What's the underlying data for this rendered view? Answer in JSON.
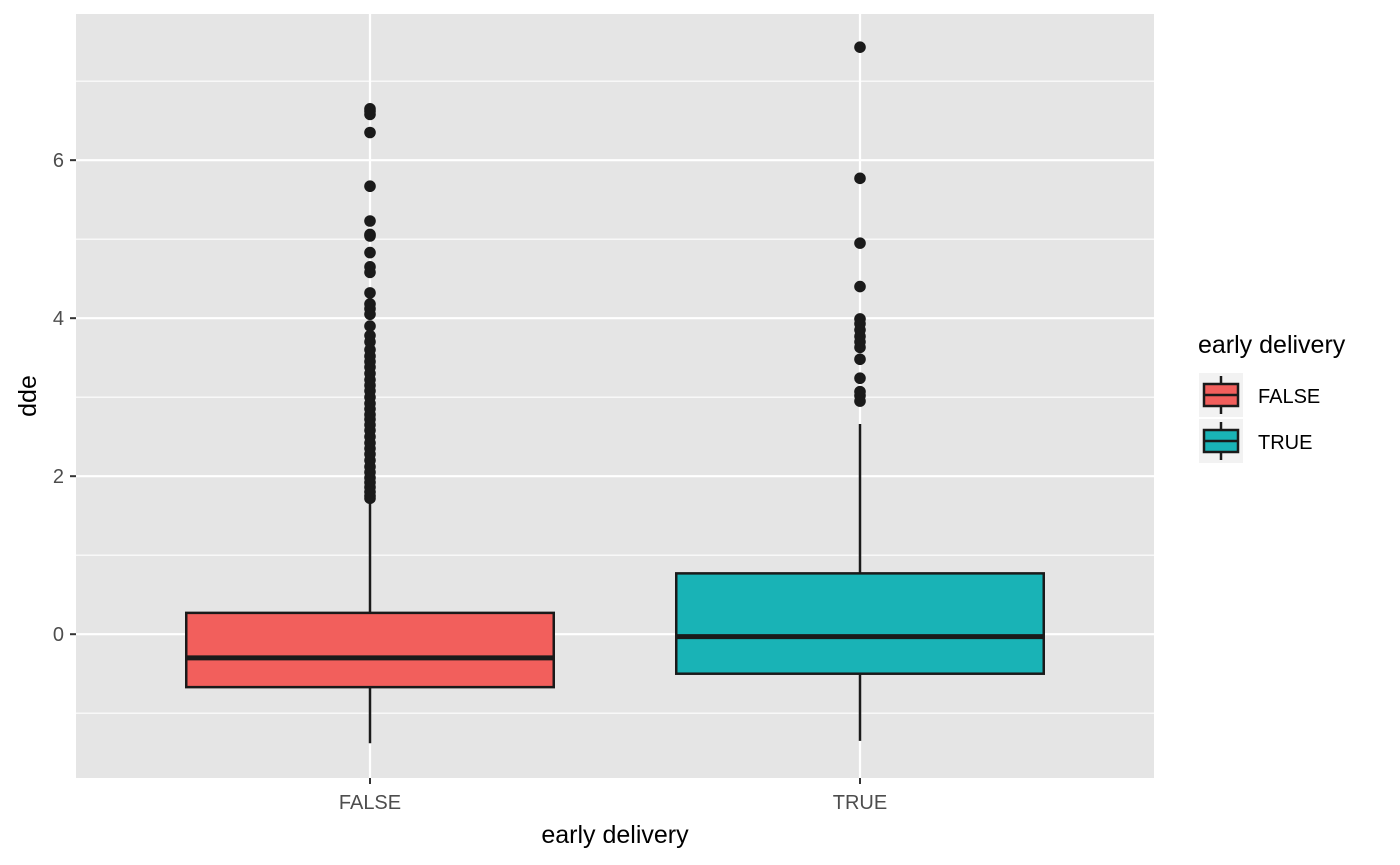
{
  "chart_data": {
    "type": "box",
    "title": "",
    "xlabel": "early delivery",
    "ylabel": "dde",
    "categories": [
      "FALSE",
      "TRUE"
    ],
    "ylim": [
      -1.82,
      7.85
    ],
    "yticks": [
      0,
      2,
      4,
      6
    ],
    "ytick_labels": [
      "0",
      "2",
      "4",
      "6"
    ],
    "grid": true,
    "background": "#e5e5e5",
    "legend": {
      "title": "early delivery",
      "placement": "right",
      "entries": [
        "FALSE",
        "TRUE"
      ]
    },
    "series": [
      {
        "category": "FALSE",
        "color": "#f25f5c",
        "min": -1.38,
        "q1": -0.67,
        "median": -0.3,
        "q3": 0.27,
        "max": 1.65,
        "outliers": [
          6.65,
          6.62,
          6.58,
          6.35,
          5.67,
          5.23,
          5.06,
          5.04,
          4.83,
          4.65,
          4.58,
          4.32,
          4.18,
          4.12,
          4.05,
          3.9,
          3.78,
          3.7,
          3.6,
          3.52,
          3.45,
          3.38,
          3.3,
          3.22,
          3.15,
          3.08,
          3.0,
          2.92,
          2.85,
          2.78,
          2.72,
          2.65,
          2.58,
          2.5,
          2.42,
          2.35,
          2.28,
          2.2,
          2.12,
          2.05,
          1.98,
          1.92,
          1.86,
          1.8,
          1.75,
          1.72
        ]
      },
      {
        "category": "TRUE",
        "color": "#19b3b6",
        "min": -1.35,
        "q1": -0.5,
        "median": -0.03,
        "q3": 0.77,
        "max": 2.66,
        "outliers": [
          7.43,
          5.77,
          4.95,
          4.4,
          3.99,
          3.93,
          3.85,
          3.77,
          3.7,
          3.63,
          3.48,
          3.24,
          3.07,
          3.02,
          2.95
        ]
      }
    ]
  }
}
